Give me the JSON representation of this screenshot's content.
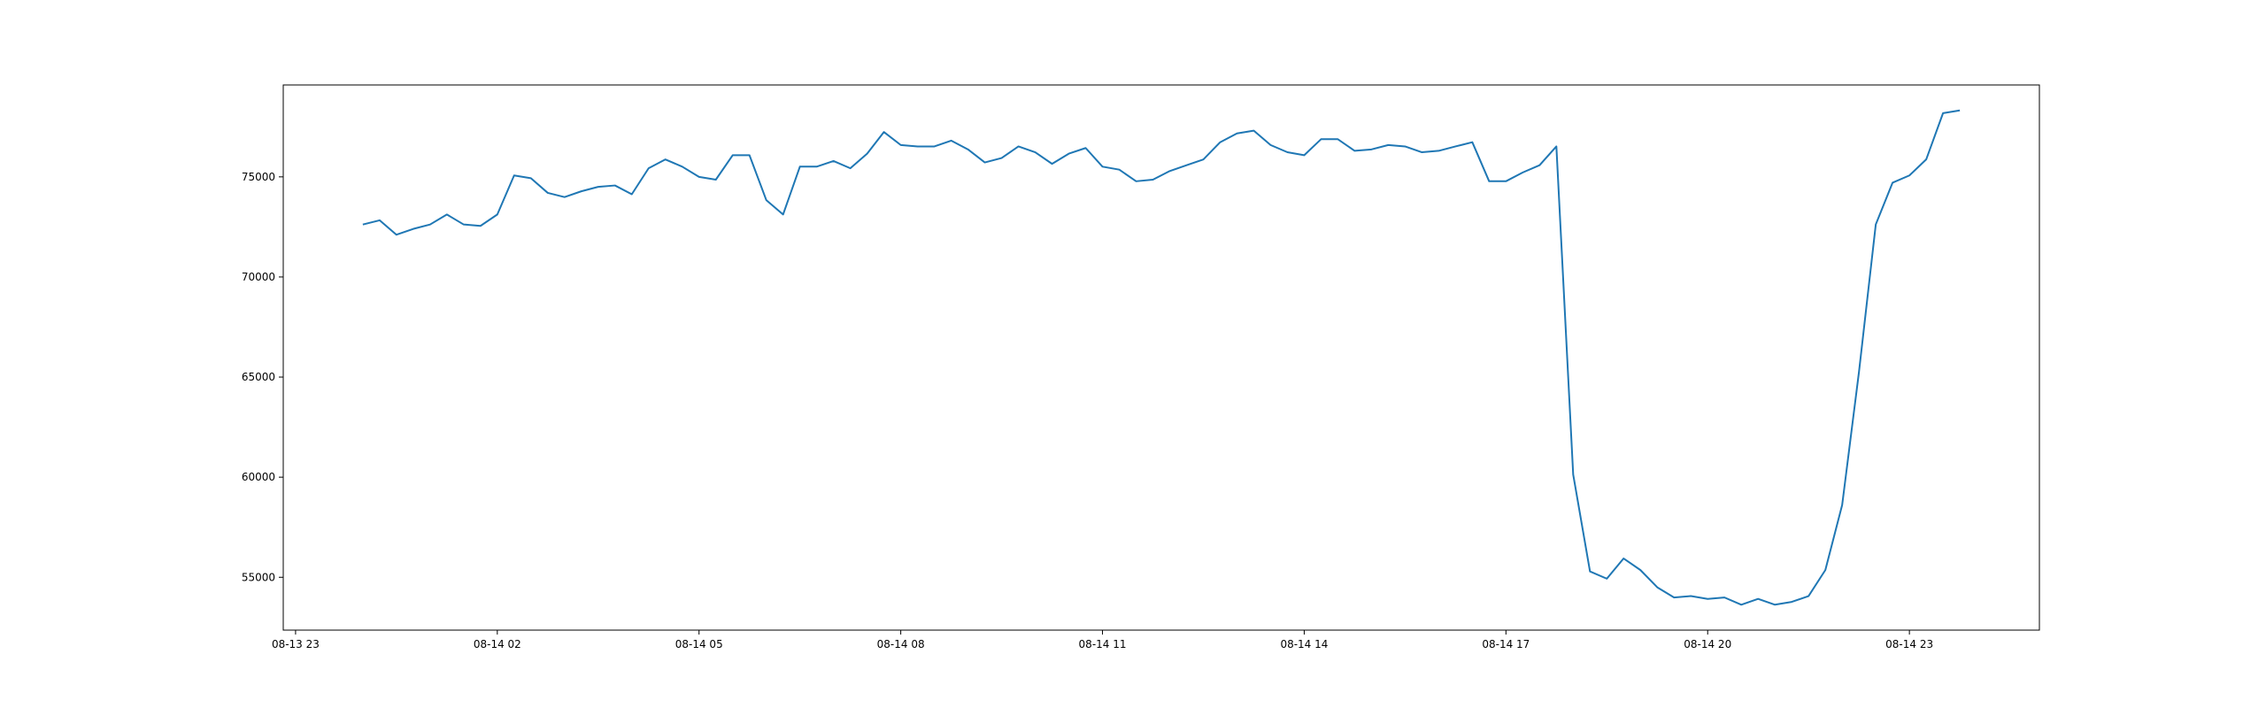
{
  "chart_data": {
    "type": "line",
    "x": [
      "08-14 00:00",
      "08-14 00:15",
      "08-14 00:30",
      "08-14 00:45",
      "08-14 01:00",
      "08-14 01:15",
      "08-14 01:30",
      "08-14 01:45",
      "08-14 02:00",
      "08-14 02:15",
      "08-14 02:30",
      "08-14 02:45",
      "08-14 03:00",
      "08-14 03:15",
      "08-14 03:30",
      "08-14 03:45",
      "08-14 04:00",
      "08-14 04:15",
      "08-14 04:30",
      "08-14 04:45",
      "08-14 05:00",
      "08-14 05:15",
      "08-14 05:30",
      "08-14 05:45",
      "08-14 06:00",
      "08-14 06:15",
      "08-14 06:30",
      "08-14 06:45",
      "08-14 07:00",
      "08-14 07:15",
      "08-14 07:30",
      "08-14 07:45",
      "08-14 08:00",
      "08-14 08:15",
      "08-14 08:30",
      "08-14 08:45",
      "08-14 09:00",
      "08-14 09:15",
      "08-14 09:30",
      "08-14 09:45",
      "08-14 10:00",
      "08-14 10:15",
      "08-14 10:30",
      "08-14 10:45",
      "08-14 11:00",
      "08-14 11:15",
      "08-14 11:30",
      "08-14 11:45",
      "08-14 12:00",
      "08-14 12:15",
      "08-14 12:30",
      "08-14 12:45",
      "08-14 13:00",
      "08-14 13:15",
      "08-14 13:30",
      "08-14 13:45",
      "08-14 14:00",
      "08-14 14:15",
      "08-14 14:30",
      "08-14 14:45",
      "08-14 15:00",
      "08-14 15:15",
      "08-14 15:30",
      "08-14 15:45",
      "08-14 16:00",
      "08-14 16:15",
      "08-14 16:30",
      "08-14 16:45",
      "08-14 17:00",
      "08-14 17:15",
      "08-14 17:30",
      "08-14 17:45",
      "08-14 18:00",
      "08-14 18:15",
      "08-14 18:30",
      "08-14 18:45",
      "08-14 19:00",
      "08-14 19:15",
      "08-14 19:30",
      "08-14 19:45",
      "08-14 20:00",
      "08-14 20:15",
      "08-14 20:30",
      "08-14 20:45",
      "08-14 21:00",
      "08-14 21:15",
      "08-14 21:30",
      "08-14 21:45",
      "08-14 22:00",
      "08-14 22:15",
      "08-14 22:30",
      "08-14 22:45",
      "08-14 23:00",
      "08-14 23:15",
      "08-14 23:30",
      "08-14 23:45"
    ],
    "series": [
      {
        "color": "#1f77b4",
        "values": [
          72620,
          72830,
          72110,
          72400,
          72620,
          73120,
          72620,
          72550,
          73120,
          75070,
          74930,
          74200,
          73990,
          74280,
          74500,
          74570,
          74130,
          75430,
          75870,
          75510,
          75000,
          74860,
          76080,
          76080,
          73840,
          73120,
          75510,
          75510,
          75790,
          75430,
          76160,
          77240,
          76590,
          76520,
          76520,
          76810,
          76370,
          75720,
          75940,
          76520,
          76230,
          75650,
          76160,
          76440,
          75510,
          75360,
          74780,
          74860,
          75290,
          75580,
          75870,
          76730,
          77170,
          77310,
          76590,
          76230,
          76080,
          76880,
          76880,
          76300,
          76370,
          76590,
          76520,
          76230,
          76300,
          76520,
          76730,
          74780,
          74780,
          75220,
          75580,
          76520,
          60130,
          55290,
          54930,
          55940,
          55360,
          54500,
          53990,
          54060,
          53920,
          53990,
          53630,
          53920,
          53630,
          53770,
          54060,
          55360,
          58610,
          65250,
          72620,
          74710,
          75070,
          75870,
          78180,
          78320
        ]
      }
    ],
    "xlim": [
      "08-13 22:49",
      "08-15 00:56"
    ],
    "xticks": [
      "08-13 23",
      "08-14 02",
      "08-14 05",
      "08-14 08",
      "08-14 11",
      "08-14 14",
      "08-14 17",
      "08-14 20",
      "08-14 23"
    ],
    "ylim": [
      52360,
      79590
    ],
    "yticks": [
      55000,
      60000,
      65000,
      70000,
      75000
    ]
  }
}
